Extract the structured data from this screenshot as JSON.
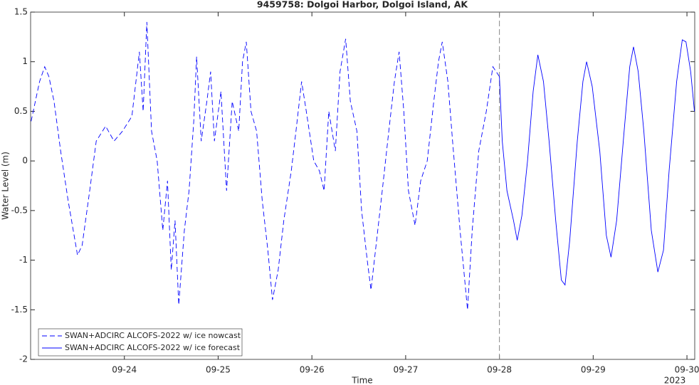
{
  "chart_data": {
    "type": "line",
    "title": "9459758: Dolgoi Harbor, Dolgoi Island, AK",
    "x_label": "Time",
    "y_label": "Water Level (m)",
    "x_sublabel": "2023",
    "xlim": [
      23.0,
      30.083
    ],
    "ylim": [
      -2,
      1.5
    ],
    "xticks": [
      {
        "value": 24,
        "label": "09-24"
      },
      {
        "value": 25,
        "label": "09-25"
      },
      {
        "value": 26,
        "label": "09-26"
      },
      {
        "value": 27,
        "label": "09-27"
      },
      {
        "value": 28,
        "label": "09-28"
      },
      {
        "value": 29,
        "label": "09-29"
      },
      {
        "value": 30,
        "label": "09-30"
      }
    ],
    "yticks": [
      -2,
      -1.5,
      -1,
      -0.5,
      0,
      0.5,
      1,
      1.5
    ],
    "vline": 28,
    "legend": "lower left",
    "series": [
      {
        "name": "SWAN+ADCIRC ALCOFS-2022 w/ ice nowcast",
        "color": "#0000ff",
        "dash": true,
        "x": [
          23.005,
          23.096,
          23.15,
          23.195,
          23.25,
          23.32,
          23.4,
          23.5,
          23.55,
          23.63,
          23.7,
          23.8,
          23.89,
          23.98,
          24.08,
          24.16,
          24.2,
          24.24,
          24.29,
          24.35,
          24.41,
          24.46,
          24.5,
          24.54,
          24.58,
          24.64,
          24.69,
          24.74,
          24.77,
          24.82,
          24.88,
          24.92,
          24.96,
          25.03,
          25.09,
          25.15,
          25.22,
          25.26,
          25.3,
          25.35,
          25.41,
          25.47,
          25.53,
          25.58,
          25.64,
          25.7,
          25.78,
          25.83,
          25.89,
          25.94,
          26.02,
          26.08,
          26.13,
          26.18,
          26.25,
          26.3,
          26.36,
          26.41,
          26.48,
          26.53,
          26.59,
          26.63,
          26.69,
          26.75,
          26.82,
          26.88,
          26.93,
          26.98,
          27.03,
          27.1,
          27.16,
          27.23,
          27.3,
          27.35,
          27.39,
          27.45,
          27.5,
          27.58,
          27.66,
          27.71,
          27.78,
          27.86,
          27.93,
          28.0
        ],
        "values": [
          0.4,
          0.8,
          0.95,
          0.85,
          0.6,
          0.1,
          -0.4,
          -0.95,
          -0.85,
          -0.3,
          0.2,
          0.35,
          0.2,
          0.3,
          0.45,
          1.1,
          0.5,
          1.4,
          0.3,
          0.0,
          -0.7,
          -0.2,
          -1.1,
          -0.6,
          -1.45,
          -0.7,
          -0.3,
          0.4,
          1.05,
          0.2,
          0.6,
          0.9,
          0.2,
          0.7,
          -0.3,
          0.6,
          0.3,
          1.0,
          1.2,
          0.5,
          0.3,
          -0.4,
          -0.9,
          -1.4,
          -1.1,
          -0.6,
          -0.1,
          0.3,
          0.8,
          0.5,
          0.0,
          -0.1,
          -0.3,
          0.5,
          0.1,
          0.9,
          1.23,
          0.6,
          0.3,
          -0.5,
          -1.0,
          -1.3,
          -0.8,
          -0.3,
          0.3,
          0.8,
          1.1,
          0.5,
          -0.3,
          -0.65,
          -0.2,
          0.0,
          0.6,
          1.0,
          1.2,
          0.8,
          0.2,
          -0.7,
          -1.5,
          -0.7,
          0.1,
          0.5,
          0.95,
          0.85
        ]
      },
      {
        "name": "SWAN+ADCIRC ALCOFS-2022 w/ ice forecast",
        "color": "#0000ff",
        "dash": false,
        "x": [
          28.0,
          28.03,
          28.08,
          28.15,
          28.19,
          28.24,
          28.3,
          28.36,
          28.41,
          28.47,
          28.53,
          28.6,
          28.66,
          28.7,
          28.75,
          28.83,
          28.89,
          28.93,
          28.99,
          29.07,
          29.14,
          29.19,
          29.25,
          29.33,
          29.39,
          29.43,
          29.48,
          29.54,
          29.62,
          29.69,
          29.75,
          29.81,
          29.89,
          29.95,
          29.99,
          30.04,
          30.08
        ],
        "values": [
          0.85,
          0.2,
          -0.3,
          -0.6,
          -0.8,
          -0.55,
          0.0,
          0.7,
          1.07,
          0.8,
          0.2,
          -0.6,
          -1.2,
          -1.25,
          -0.8,
          0.2,
          0.8,
          1.0,
          0.75,
          0.1,
          -0.75,
          -0.97,
          -0.6,
          0.3,
          0.95,
          1.15,
          0.9,
          0.3,
          -0.7,
          -1.12,
          -0.9,
          -0.1,
          0.8,
          1.22,
          1.2,
          0.9,
          0.5
        ]
      }
    ]
  }
}
